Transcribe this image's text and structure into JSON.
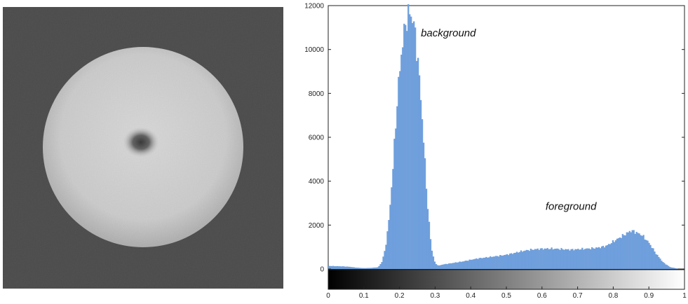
{
  "image": {
    "description_icon": "grayscale-disc-image-icon",
    "background_color": "#3a3a3a",
    "disc_color": "#e6e6e6",
    "dark_spot_color": "#2a2a2a"
  },
  "chart_data": {
    "type": "bar",
    "title": "",
    "xlabel": "",
    "ylabel": "",
    "xlim": [
      0,
      1
    ],
    "ylim": [
      0,
      12000
    ],
    "grid": false,
    "bar_color": "#6f9fdc",
    "x_ticks": [
      "0",
      "0.1",
      "0.2",
      "0.3",
      "0.4",
      "0.5",
      "0.6",
      "0.7",
      "0.8",
      "0.9",
      "1"
    ],
    "y_ticks": [
      "0",
      "2000",
      "4000",
      "6000",
      "8000",
      "10000",
      "12000"
    ],
    "annotations": [
      {
        "text": "background",
        "x": 0.26,
        "y": 10600
      },
      {
        "text": "foreground",
        "x": 0.61,
        "y": 2700
      }
    ],
    "bins": [
      [
        0.0,
        140
      ],
      [
        0.02,
        130
      ],
      [
        0.04,
        120
      ],
      [
        0.06,
        100
      ],
      [
        0.08,
        60
      ],
      [
        0.1,
        40
      ],
      [
        0.12,
        50
      ],
      [
        0.14,
        80
      ],
      [
        0.15,
        300
      ],
      [
        0.16,
        900
      ],
      [
        0.17,
        2200
      ],
      [
        0.18,
        4200
      ],
      [
        0.19,
        6800
      ],
      [
        0.2,
        9000
      ],
      [
        0.21,
        10500
      ],
      [
        0.22,
        11400
      ],
      [
        0.23,
        11700
      ],
      [
        0.24,
        11200
      ],
      [
        0.25,
        9800
      ],
      [
        0.26,
        7800
      ],
      [
        0.27,
        5200
      ],
      [
        0.28,
        2600
      ],
      [
        0.29,
        900
      ],
      [
        0.3,
        250
      ],
      [
        0.31,
        150
      ],
      [
        0.32,
        200
      ],
      [
        0.34,
        250
      ],
      [
        0.36,
        300
      ],
      [
        0.38,
        350
      ],
      [
        0.4,
        420
      ],
      [
        0.42,
        480
      ],
      [
        0.44,
        520
      ],
      [
        0.46,
        560
      ],
      [
        0.48,
        600
      ],
      [
        0.5,
        650
      ],
      [
        0.52,
        720
      ],
      [
        0.54,
        800
      ],
      [
        0.56,
        860
      ],
      [
        0.58,
        900
      ],
      [
        0.6,
        920
      ],
      [
        0.62,
        930
      ],
      [
        0.64,
        920
      ],
      [
        0.66,
        900
      ],
      [
        0.68,
        880
      ],
      [
        0.7,
        900
      ],
      [
        0.72,
        920
      ],
      [
        0.74,
        940
      ],
      [
        0.76,
        980
      ],
      [
        0.78,
        1050
      ],
      [
        0.8,
        1250
      ],
      [
        0.82,
        1450
      ],
      [
        0.84,
        1650
      ],
      [
        0.85,
        1750
      ],
      [
        0.86,
        1700
      ],
      [
        0.88,
        1550
      ],
      [
        0.9,
        1200
      ],
      [
        0.92,
        700
      ],
      [
        0.94,
        300
      ],
      [
        0.96,
        80
      ],
      [
        0.98,
        20
      ]
    ]
  }
}
